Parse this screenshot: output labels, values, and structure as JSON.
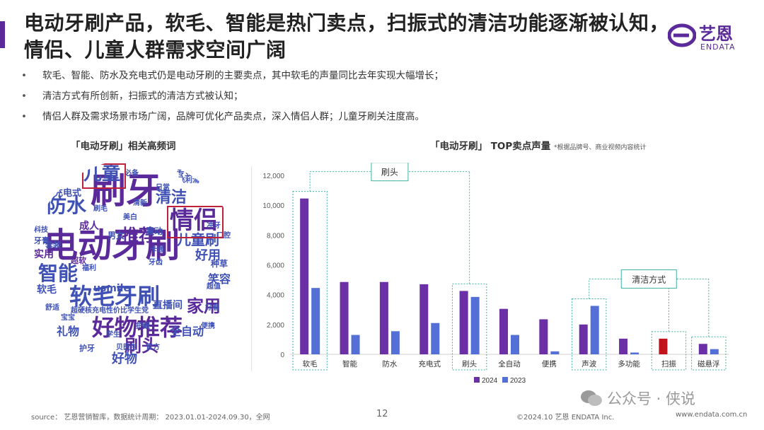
{
  "title": "电动牙刷产品，软毛、智能是热门卖点，扫振式的清洁功能逐渐被认知，情侣、儿童人群需求空间广阔",
  "logo": {
    "brand_cn": "艺恩",
    "brand_en": "ENDATA"
  },
  "bullets": [
    "软毛、智能、防水及充电式仍是电动牙刷的主要卖点，其中软毛的声量同比去年实现大幅增长；",
    "清洁方式有所创新，扫振式的清洁方式被认知；",
    "情侣人群及需求场景市场广阔，品牌可优化产品卖点，深入情侣人群；儿童牙刷关注度高。"
  ],
  "bullet_marker": "•",
  "wordcloud": {
    "title": "「电动牙刷」相关高频词",
    "words": [
      {
        "text": "电动牙刷",
        "color": "#5b2a9a"
      },
      {
        "text": "刷牙",
        "color": "#5b2a9a"
      },
      {
        "text": "情侣",
        "color": "#5b2a9a"
      },
      {
        "text": "儿童",
        "color": "#3f51b5"
      },
      {
        "text": "防水",
        "color": "#3f51b5"
      },
      {
        "text": "清洁",
        "color": "#3f51b5"
      },
      {
        "text": "智能",
        "color": "#3f51b5"
      },
      {
        "text": "软毛牙刷",
        "color": "#3f51b5"
      },
      {
        "text": "好物推荐",
        "color": "#5b2a9a"
      },
      {
        "text": "刷头",
        "color": "#5b2a9a"
      },
      {
        "text": "推荐",
        "color": "#5b2a9a"
      },
      {
        "text": "儿童刷",
        "color": "#3f51b5"
      },
      {
        "text": "好用",
        "color": "#3f51b5"
      },
      {
        "text": "家用",
        "color": "#5b2a9a"
      },
      {
        "text": "直播间",
        "color": "#3f51b5"
      },
      {
        "text": "全自动",
        "color": "#3f51b5"
      },
      {
        "text": "礼物",
        "color": "#3f51b5"
      },
      {
        "text": "好物",
        "color": "#3f51b5"
      },
      {
        "text": "usmile",
        "color": "#3f51b5"
      },
      {
        "text": "实用",
        "color": "#5b2a9a"
      },
      {
        "text": "软毛",
        "color": "#3f51b5"
      },
      {
        "text": "成人",
        "color": "#5b2a9a"
      },
      {
        "text": "男女",
        "color": "#3f51b5"
      },
      {
        "text": "充电式",
        "color": "#3f51b5"
      },
      {
        "text": "牙膏",
        "color": "#3f51b5"
      },
      {
        "text": "科技",
        "color": "#3f51b5"
      },
      {
        "text": "套装",
        "color": "#3f51b5"
      },
      {
        "text": "护牙",
        "color": "#3f51b5"
      },
      {
        "text": "笑容",
        "color": "#3f51b5"
      },
      {
        "text": "种草",
        "color": "#3f51b5"
      },
      {
        "text": "震动",
        "color": "#3f51b5"
      },
      {
        "text": "超硬核充电性价比学生党",
        "color": "#3f51b5"
      },
      {
        "text": "卡通",
        "color": "#3f51b5"
      },
      {
        "text": "专业",
        "color": "#3f51b5"
      },
      {
        "text": "必备",
        "color": "#3f51b5"
      },
      {
        "text": "超软",
        "color": "#5b2a9a"
      },
      {
        "text": "福利",
        "color": "#3f51b5"
      },
      {
        "text": "飞利浦",
        "color": "#3f51b5"
      },
      {
        "text": "日常",
        "color": "#3f51b5"
      },
      {
        "text": "口腔",
        "color": "#3f51b5"
      },
      {
        "text": "好看",
        "color": "#3f51b5"
      },
      {
        "text": "超值",
        "color": "#3f51b5"
      },
      {
        "text": "宝宝",
        "color": "#3f51b5"
      },
      {
        "text": "贝医生",
        "color": "#3f51b5"
      },
      {
        "text": "刷毛",
        "color": "#3f51b5"
      },
      {
        "text": "舒适",
        "color": "#3f51b5"
      },
      {
        "text": "护龈",
        "color": "#3f51b5"
      },
      {
        "text": "美白",
        "color": "#3f51b5"
      },
      {
        "text": "冲牙",
        "color": "#3f51b5"
      },
      {
        "text": "官方",
        "color": "#3f51b5"
      },
      {
        "text": "便携",
        "color": "#3f51b5"
      },
      {
        "text": "牙齿",
        "color": "#3f51b5"
      },
      {
        "text": "清新",
        "color": "#3f51b5"
      },
      {
        "text": "学生",
        "color": "#3f51b5"
      }
    ]
  },
  "chart_title": "「电动牙刷」 TOP卖点声量",
  "chart_note": "*根据品牌号、商业视频内容统计",
  "chart_data": {
    "type": "bar",
    "categories": [
      "软毛",
      "智能",
      "防水",
      "充电式",
      "刷头",
      "全自动",
      "便携",
      "声波",
      "多功能",
      "扫振",
      "磁悬浮"
    ],
    "series": [
      {
        "name": "2024",
        "color": "#6b2fa6",
        "values": [
          10450,
          4850,
          4850,
          4700,
          4250,
          3050,
          2350,
          2000,
          1050,
          1050,
          700
        ]
      },
      {
        "name": "2023",
        "color": "#5470d6",
        "values": [
          4450,
          1300,
          1550,
          2100,
          3850,
          1300,
          200,
          3250,
          120,
          0,
          350
        ]
      }
    ],
    "highlight": {
      "category": "扫振",
      "color": "#c0131b"
    },
    "ylim": [
      0,
      12000
    ],
    "yticks": [
      0,
      2000,
      4000,
      6000,
      8000,
      10000,
      12000
    ],
    "ytick_labels": [
      "0",
      "2,000",
      "4,000",
      "6,000",
      "8,000",
      "10,000",
      "12,000"
    ],
    "groups": [
      {
        "label": "刷头",
        "categories": [
          "软毛",
          "刷头"
        ]
      },
      {
        "label": "清洁方式",
        "categories": [
          "声波",
          "扫振",
          "磁悬浮"
        ]
      }
    ],
    "legend": "bottom"
  },
  "footer": {
    "source": "source： 艺恩营销智库，数据统计周期： 2023.01.01-2024.09.30，全网",
    "page": "12",
    "copyright": "©2024.10  艺恩 ENDATA Inc.",
    "url": "www.endata.com.cn"
  },
  "watermark": "公众号 · 侠说"
}
